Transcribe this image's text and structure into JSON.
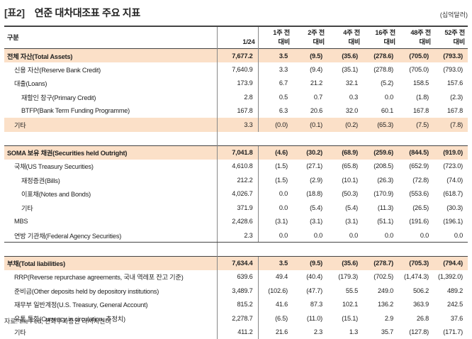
{
  "title": {
    "tag": "[표2]",
    "text": "연준 대차대조표 주요 지표",
    "unit": "(십억달러)"
  },
  "header": {
    "label": "구분",
    "cols": [
      {
        "l1": "",
        "l2": "1/24"
      },
      {
        "l1": "1주 전",
        "l2": "대비"
      },
      {
        "l1": "2주 전",
        "l2": "대비"
      },
      {
        "l1": "4주 전",
        "l2": "대비"
      },
      {
        "l1": "16주 전",
        "l2": "대비"
      },
      {
        "l1": "48주 전",
        "l2": "대비"
      },
      {
        "l1": "52주 전",
        "l2": "대비"
      }
    ]
  },
  "rows": [
    {
      "label": "전체 자산(Total Assets)",
      "v": [
        "7,677.2",
        "3.5",
        "(9.5)",
        "(35.6)",
        "(278.6)",
        "(705.0)",
        "(793.3)"
      ]
    },
    {
      "label": "신용 자산(Reserve Bank Credit)",
      "v": [
        "7,640.9",
        "3.3",
        "(9.4)",
        "(35.1)",
        "(278.8)",
        "(705.0)",
        "(793.0)"
      ]
    },
    {
      "label": "대출(Loans)",
      "v": [
        "173.9",
        "6.7",
        "21.2",
        "32.1",
        "(5.2)",
        "158.5",
        "157.6"
      ]
    },
    {
      "label": "재할인 창구(Primary Credit)",
      "v": [
        "2.8",
        "0.5",
        "0.7",
        "0.3",
        "0.0",
        "(1.8)",
        "(2.3)"
      ]
    },
    {
      "label": "BTFP(Bank Term Funding Programme)",
      "v": [
        "167.8",
        "6.3",
        "20.6",
        "32.0",
        "60.1",
        "167.8",
        "167.8"
      ]
    },
    {
      "label": "기타",
      "v": [
        "3.3",
        "(0.0)",
        "(0.1)",
        "(0.2)",
        "(65.3)",
        "(7.5)",
        "(7.8)"
      ]
    },
    {
      "label": "SOMA 보유 채권(Securities held Outright)",
      "v": [
        "7,041.8",
        "(4.6)",
        "(30.2)",
        "(68.9)",
        "(259.6)",
        "(844.5)",
        "(919.0)"
      ]
    },
    {
      "label": "국채(US Treasury Securities)",
      "v": [
        "4,610.8",
        "(1.5)",
        "(27.1)",
        "(65.8)",
        "(208.5)",
        "(652.9)",
        "(723.0)"
      ]
    },
    {
      "label": "재정증권(Bills)",
      "v": [
        "212.2",
        "(1.5)",
        "(2.9)",
        "(10.1)",
        "(26.3)",
        "(72.8)",
        "(74.0)"
      ]
    },
    {
      "label": "이표채(Notes and Bonds)",
      "v": [
        "4,026.7",
        "0.0",
        "(18.8)",
        "(50.3)",
        "(170.9)",
        "(553.6)",
        "(618.7)"
      ]
    },
    {
      "label": "기타",
      "v": [
        "371.9",
        "0.0",
        "(5.4)",
        "(5.4)",
        "(11.3)",
        "(26.5)",
        "(30.3)"
      ]
    },
    {
      "label": "MBS",
      "v": [
        "2,428.6",
        "(3.1)",
        "(3.1)",
        "(3.1)",
        "(51.1)",
        "(191.6)",
        "(196.1)"
      ]
    },
    {
      "label": "연방 기관채(Federal Agency Securities)",
      "v": [
        "2.3",
        "0.0",
        "0.0",
        "0.0",
        "0.0",
        "0.0",
        "0.0"
      ]
    },
    {
      "label": "부채(Total liabilities)",
      "v": [
        "7,634.4",
        "3.5",
        "(9.5)",
        "(35.6)",
        "(278.7)",
        "(705.3)",
        "(794.4)"
      ]
    },
    {
      "label": "RRP(Reverse repurchase agreements, 국내 역레포 잔고 기준)",
      "v": [
        "639.6",
        "49.4",
        "(40.4)",
        "(179.3)",
        "(702.5)",
        "(1,474.3)",
        "(1,392.0)"
      ]
    },
    {
      "label": "준비금(Other deposits held by depository institutions)",
      "v": [
        "3,489.7",
        "(102.6)",
        "(47.7)",
        "55.5",
        "249.0",
        "506.2",
        "489.2"
      ]
    },
    {
      "label": "재무부 일반계정(U.S. Treasury, General Account)",
      "v": [
        "815.2",
        "41.6",
        "87.3",
        "102.1",
        "136.2",
        "363.9",
        "242.5"
      ]
    },
    {
      "label": "유통 통화(Currency in circulation, 추정치)",
      "v": [
        "2,278.7",
        "(6.5)",
        "(11.0)",
        "(15.1)",
        "2.9",
        "26.8",
        "37.6"
      ]
    },
    {
      "label": "기타",
      "v": [
        "411.2",
        "21.6",
        "2.3",
        "1.3",
        "35.7",
        "(127.8)",
        "(171.7)"
      ]
    }
  ],
  "source": "자료: the Fed, 한화투자증권 리서치센터",
  "colors": {
    "highlight": "#fbe0c8",
    "rule": "#444444"
  }
}
